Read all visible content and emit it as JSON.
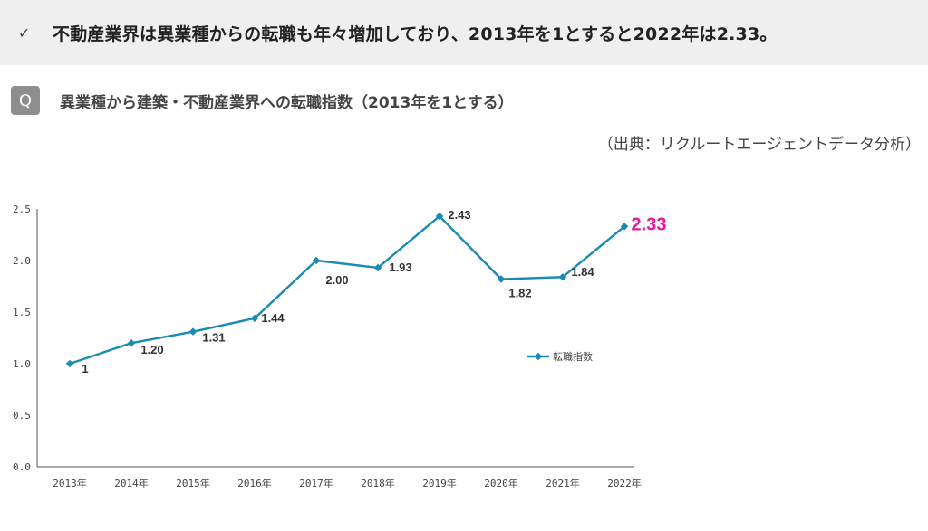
{
  "banner": {
    "check_glyph": "✓",
    "text": "不動産業界は異業種からの転職も年々増加しており、2013年を1とすると2022年は2.33。"
  },
  "question": {
    "badge": "Q",
    "text": "異業種から建築・不動産業界への転職指数（2013年を1とする）"
  },
  "source": "（出典：リクルートエージェントデータ分析）",
  "colors": {
    "line": "#1a8bb3",
    "highlight": "#e6189a",
    "axis": "#555555"
  },
  "chart_data": {
    "type": "line",
    "title": "",
    "xlabel": "",
    "ylabel": "",
    "categories": [
      "2013年",
      "2014年",
      "2015年",
      "2016年",
      "2017年",
      "2018年",
      "2019年",
      "2020年",
      "2021年",
      "2022年"
    ],
    "series": [
      {
        "name": "転職指数",
        "values": [
          1,
          1.2,
          1.31,
          1.44,
          2.0,
          1.93,
          2.43,
          1.82,
          1.84,
          2.33
        ],
        "labels": [
          "1",
          "1.20",
          "1.31",
          "1.44",
          "2.00",
          "1.93",
          "2.43",
          "1.82",
          "1.84",
          "2.33"
        ]
      }
    ],
    "ylim": [
      0,
      2.5
    ],
    "yticks": [
      "0.0",
      "0.5",
      "1.0",
      "1.5",
      "2.0",
      "2.5"
    ],
    "grid": false,
    "legend": "right-middle",
    "highlight_last": true
  }
}
